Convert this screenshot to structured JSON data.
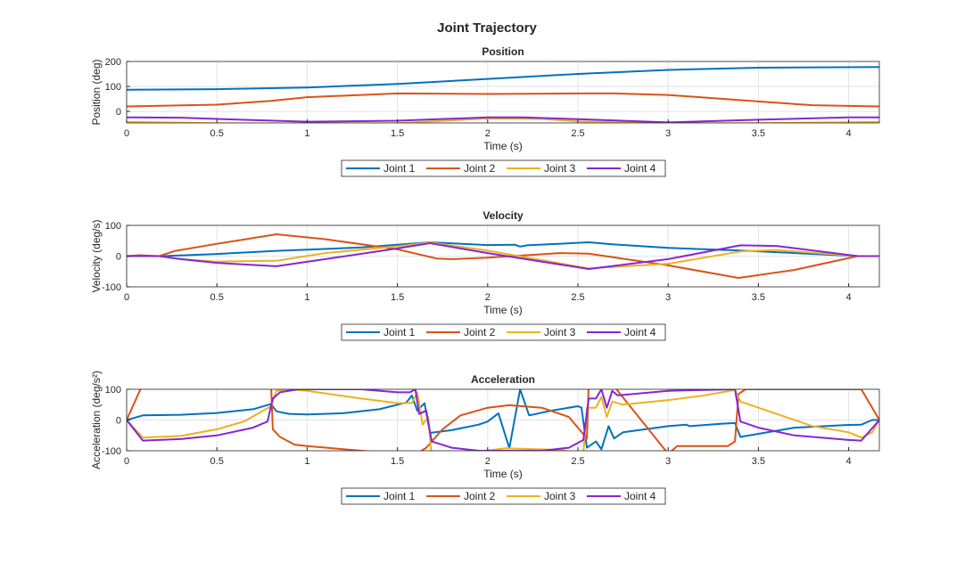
{
  "figure_title": "Joint Trajectory",
  "colors": {
    "Joint 1": "#0072BD",
    "Joint 2": "#D95319",
    "Joint 3": "#EDB120",
    "Joint 4": "#8526D6"
  },
  "chart_data": [
    {
      "type": "line",
      "title": "Position",
      "xlabel": "Time (s)",
      "ylabel": "Position (deg)",
      "xlim": [
        0,
        4.17
      ],
      "ylim": [
        -46,
        200
      ],
      "xticks": [
        0,
        0.5,
        1,
        1.5,
        2,
        2.5,
        3,
        3.5,
        4
      ],
      "yticks": [
        0,
        100,
        200
      ],
      "grid": true,
      "legend": "below",
      "series": [
        {
          "name": "Joint 1",
          "x": [
            0,
            0.5,
            1,
            1.5,
            2,
            2.5,
            3,
            3.5,
            4.17
          ],
          "y": [
            87,
            89,
            96,
            110,
            130,
            150,
            166,
            175,
            178
          ]
        },
        {
          "name": "Joint 2",
          "x": [
            0,
            0.5,
            0.8,
            1,
            1.5,
            2,
            2.5,
            2.7,
            3,
            3.5,
            3.8,
            4.17
          ],
          "y": [
            20,
            27,
            42,
            57,
            72,
            70,
            72,
            72,
            66,
            40,
            25,
            20
          ]
        },
        {
          "name": "Joint 3",
          "x": [
            0,
            0.5,
            1,
            1.5,
            2,
            2.3,
            2.5,
            3,
            3.5,
            4,
            4.17
          ],
          "y": [
            -42,
            -47,
            -48,
            -47,
            -28,
            -30,
            -40,
            -48,
            -47,
            -43,
            -42
          ]
        },
        {
          "name": "Joint 4",
          "x": [
            0,
            0.3,
            0.5,
            1,
            1.5,
            2,
            2.2,
            2.5,
            3,
            3.5,
            4,
            4.17
          ],
          "y": [
            -24,
            -25,
            -30,
            -41,
            -37,
            -24,
            -24,
            -31,
            -44,
            -33,
            -24,
            -24
          ]
        }
      ]
    },
    {
      "type": "line",
      "title": "Velocity",
      "xlabel": "Time (s)",
      "ylabel": "Velocity (deg/s)",
      "xlim": [
        0,
        4.17
      ],
      "ylim": [
        -100,
        100
      ],
      "xticks": [
        0,
        0.5,
        1,
        1.5,
        2,
        2.5,
        3,
        3.5,
        4
      ],
      "yticks": [
        -100,
        0,
        100
      ],
      "grid": true,
      "legend": "below",
      "series": [
        {
          "name": "Joint 1",
          "x": [
            0,
            0.2,
            0.5,
            0.83,
            1.3,
            1.68,
            2,
            2.15,
            2.18,
            2.22,
            2.56,
            2.7,
            3,
            3.4,
            3.7,
            4.05,
            4.17
          ],
          "y": [
            0,
            0,
            7,
            17,
            28,
            45,
            36,
            37,
            31,
            35,
            45,
            38,
            27,
            18,
            10,
            0,
            0
          ]
        },
        {
          "name": "Joint 2",
          "x": [
            0,
            0.07,
            0.18,
            0.27,
            0.5,
            0.83,
            1.1,
            1.5,
            1.72,
            1.8,
            2,
            2.4,
            2.56,
            3,
            3.39,
            3.7,
            4.05,
            4.17
          ],
          "y": [
            0,
            3,
            0,
            17,
            40,
            71,
            55,
            22,
            -8,
            -10,
            -5,
            10,
            8,
            -30,
            -71,
            -45,
            0,
            0
          ]
        },
        {
          "name": "Joint 3",
          "x": [
            0,
            0.18,
            0.3,
            0.5,
            0.83,
            1.1,
            1.5,
            1.68,
            2,
            2.56,
            3,
            3.4,
            3.6,
            4.05,
            4.17
          ],
          "y": [
            0,
            0,
            -10,
            -18,
            -15,
            10,
            32,
            44,
            18,
            -40,
            -25,
            15,
            20,
            0,
            0
          ]
        },
        {
          "name": "Joint 4",
          "x": [
            0,
            0.18,
            0.3,
            0.5,
            0.83,
            1.1,
            1.5,
            1.68,
            2,
            2.56,
            3,
            3.4,
            3.6,
            4.05,
            4.17
          ],
          "y": [
            0,
            0,
            -10,
            -22,
            -33,
            -10,
            25,
            42,
            10,
            -42,
            -10,
            35,
            33,
            0,
            0
          ]
        }
      ]
    },
    {
      "type": "line",
      "title": "Acceleration",
      "xlabel": "Time (s)",
      "ylabel": "Acceleration (deg/s²)",
      "xlim": [
        0,
        4.17
      ],
      "ylim": [
        -100,
        100
      ],
      "xticks": [
        0,
        0.5,
        1,
        1.5,
        2,
        2.5,
        3,
        3.5,
        4
      ],
      "yticks": [
        -100,
        0,
        100
      ],
      "grid": true,
      "legend": "below",
      "series": [
        {
          "name": "Joint 1",
          "x": [
            0,
            0.09,
            0.3,
            0.5,
            0.7,
            0.8,
            0.83,
            0.9,
            1,
            1.2,
            1.4,
            1.55,
            1.58,
            1.61,
            1.65,
            1.68,
            1.8,
            1.95,
            2,
            2.06,
            2.12,
            2.18,
            2.23,
            2.35,
            2.5,
            2.52,
            2.55,
            2.6,
            2.63,
            2.67,
            2.7,
            2.75,
            3,
            3.1,
            3.12,
            3.3,
            3.37,
            3.4,
            3.5,
            3.7,
            4,
            4.07,
            4.13,
            4.17
          ],
          "y": [
            0,
            15,
            17,
            23,
            35,
            52,
            28,
            20,
            18,
            22,
            35,
            57,
            80,
            30,
            55,
            -42,
            -33,
            -15,
            -5,
            22,
            -92,
            100,
            15,
            30,
            45,
            40,
            -90,
            -70,
            -95,
            -20,
            -60,
            -40,
            -20,
            -15,
            -20,
            -12,
            -10,
            -55,
            -45,
            -25,
            -16,
            -15,
            0,
            0
          ]
        },
        {
          "name": "Joint 2",
          "x": [
            0,
            0.08,
            0.78,
            0.8,
            0.81,
            0.85,
            0.93,
            1,
            1.2,
            1.4,
            1.62,
            1.66,
            1.75,
            1.85,
            2,
            2.12,
            2.3,
            2.45,
            2.55,
            2.56,
            2.7,
            3,
            3.05,
            3.2,
            3.33,
            3.37,
            3.39,
            3.43,
            4.07,
            4.17
          ],
          "y": [
            0,
            105,
            105,
            120,
            -30,
            -55,
            -80,
            -85,
            -95,
            -105,
            -105,
            -90,
            -30,
            15,
            40,
            48,
            40,
            10,
            -60,
            120,
            110,
            -110,
            -85,
            -85,
            -85,
            -70,
            85,
            100,
            100,
            0
          ]
        },
        {
          "name": "Joint 3",
          "x": [
            0,
            0.09,
            0.3,
            0.5,
            0.65,
            0.8,
            0.83,
            0.9,
            1,
            1.3,
            1.5,
            1.58,
            1.61,
            1.64,
            1.67,
            1.69,
            2.1,
            2.4,
            2.53,
            2.55,
            2.6,
            2.63,
            2.66,
            2.69,
            2.75,
            3,
            3.2,
            3.37,
            3.4,
            3.6,
            3.8,
            4,
            4.07,
            4.13,
            4.17
          ],
          "y": [
            0,
            -57,
            -52,
            -30,
            -5,
            45,
            95,
            100,
            95,
            70,
            55,
            55,
            90,
            -15,
            10,
            -120,
            -92,
            -97,
            -110,
            40,
            40,
            75,
            10,
            60,
            50,
            65,
            80,
            98,
            60,
            20,
            -20,
            -40,
            -57,
            -40,
            0
          ]
        },
        {
          "name": "Joint 4",
          "x": [
            0,
            0.09,
            0.3,
            0.5,
            0.7,
            0.78,
            0.81,
            0.85,
            0.95,
            1.3,
            1.5,
            1.57,
            1.6,
            1.62,
            1.66,
            1.69,
            1.8,
            1.95,
            2.3,
            2.45,
            2.53,
            2.56,
            2.6,
            2.63,
            2.66,
            2.69,
            2.72,
            3,
            3.37,
            3.4,
            3.5,
            3.7,
            4,
            4.07,
            4.17
          ],
          "y": [
            0,
            -67,
            -62,
            -50,
            -25,
            -5,
            70,
            90,
            100,
            100,
            90,
            90,
            100,
            20,
            30,
            -70,
            -90,
            -100,
            -100,
            -90,
            -65,
            70,
            70,
            100,
            40,
            95,
            80,
            95,
            100,
            -5,
            -25,
            -50,
            -65,
            -67,
            0
          ]
        }
      ]
    }
  ]
}
